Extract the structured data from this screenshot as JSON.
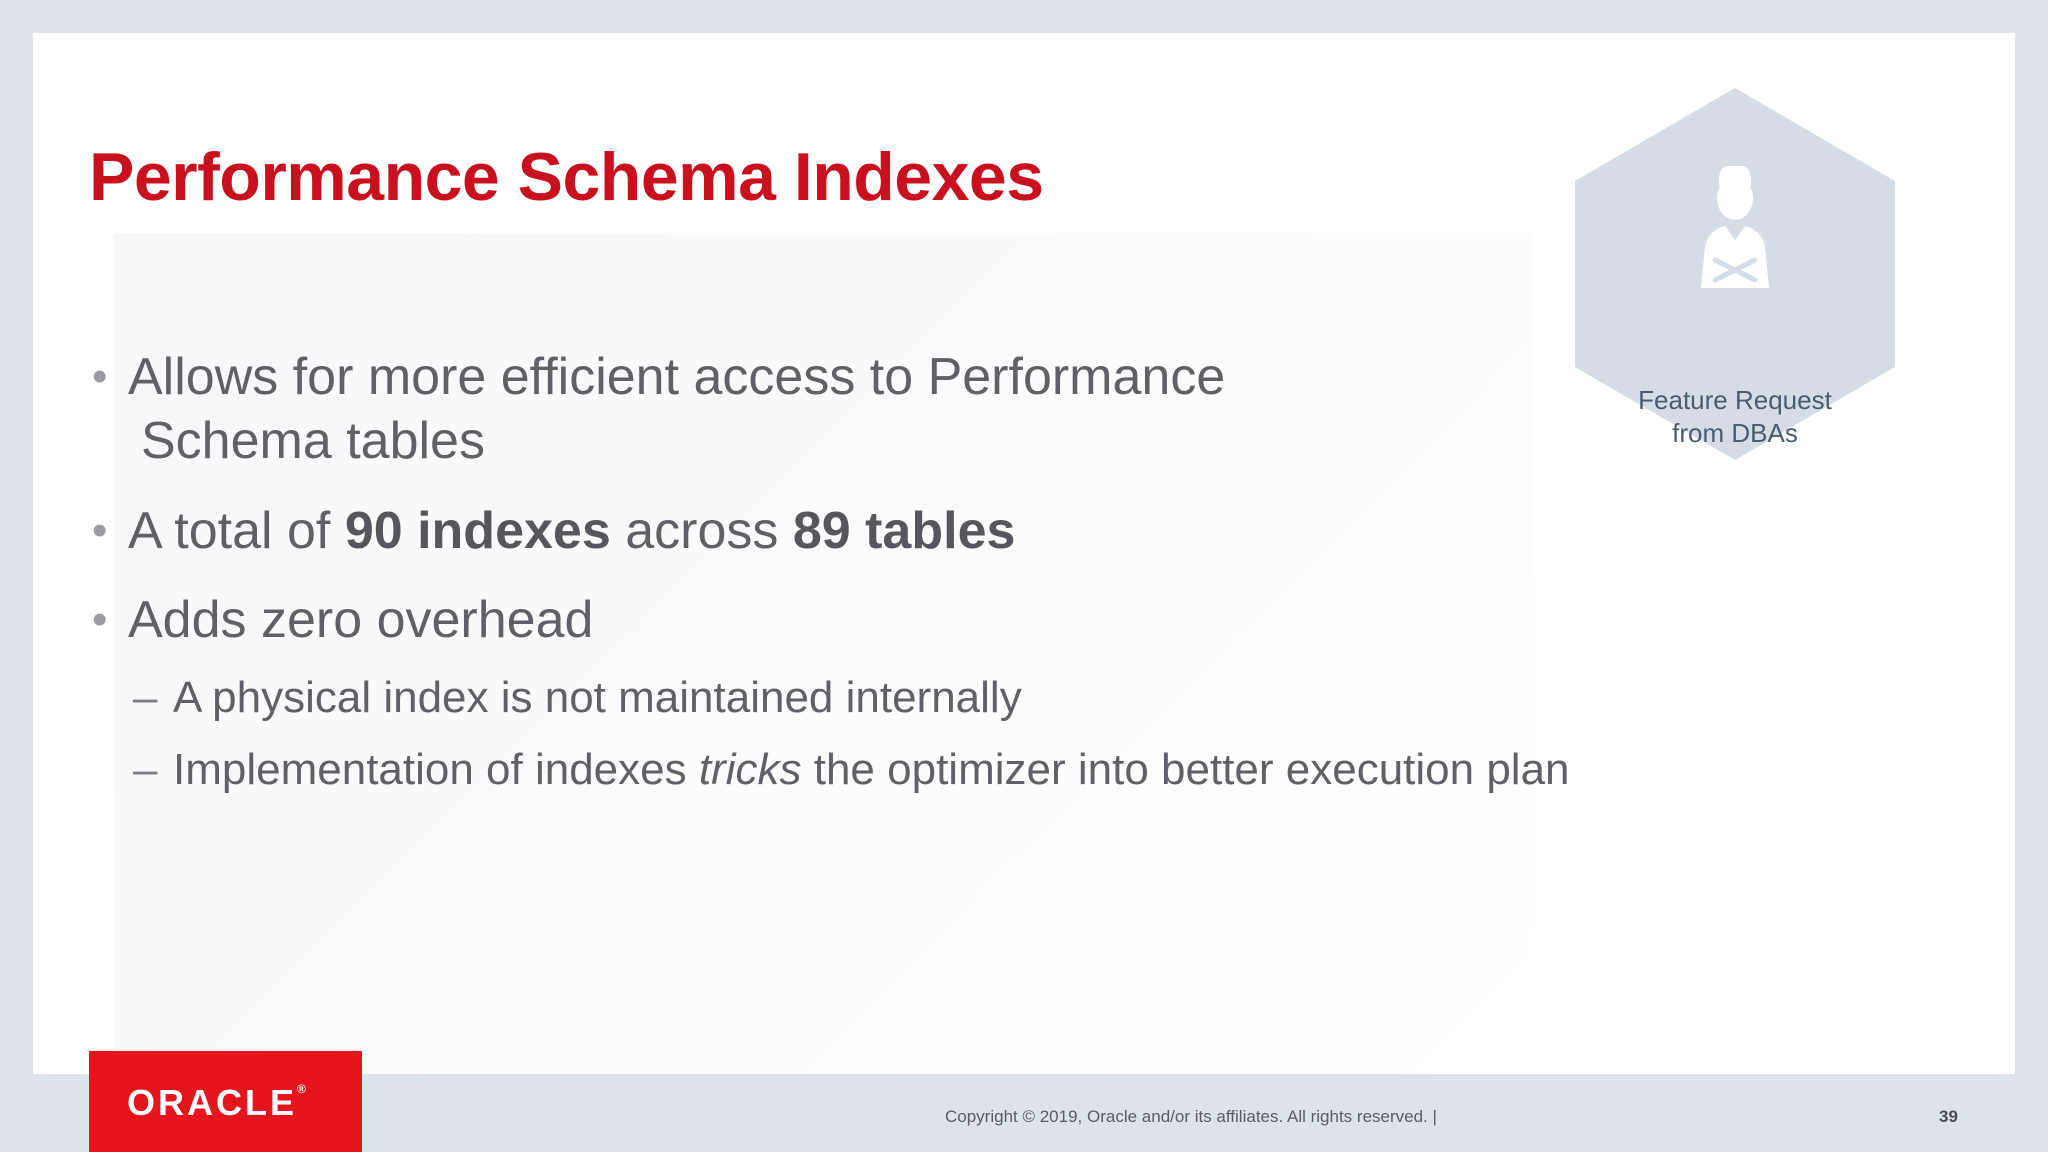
{
  "slide": {
    "title": "Performance Schema Indexes",
    "bullets": [
      {
        "line1": "Allows for more efficient access to Performance",
        "line2": "Schema tables"
      },
      {
        "pre": "A total of ",
        "bold1": "90 indexes",
        "mid": " across ",
        "bold2": "89 tables"
      },
      {
        "text": "Adds zero overhead"
      }
    ],
    "sub_bullets": [
      {
        "text": "A physical index is not maintained internally"
      },
      {
        "pre": "Implementation of indexes ",
        "em": "tricks",
        "post": " the optimizer into better execution plan"
      }
    ],
    "bullet_char": "•",
    "dash_char": "–",
    "badge": {
      "line1": "Feature Request",
      "line2": "from DBAs",
      "icon": "dba-tools-person-icon",
      "color": "#d4dde5"
    }
  },
  "footer": {
    "copyright": "Copyright © 2019, Oracle and/or its affiliates. All rights reserved.  |",
    "page_number": "39"
  },
  "logo": {
    "wordmark": "ORACLE",
    "registered": "®",
    "color": "#e5141d"
  }
}
